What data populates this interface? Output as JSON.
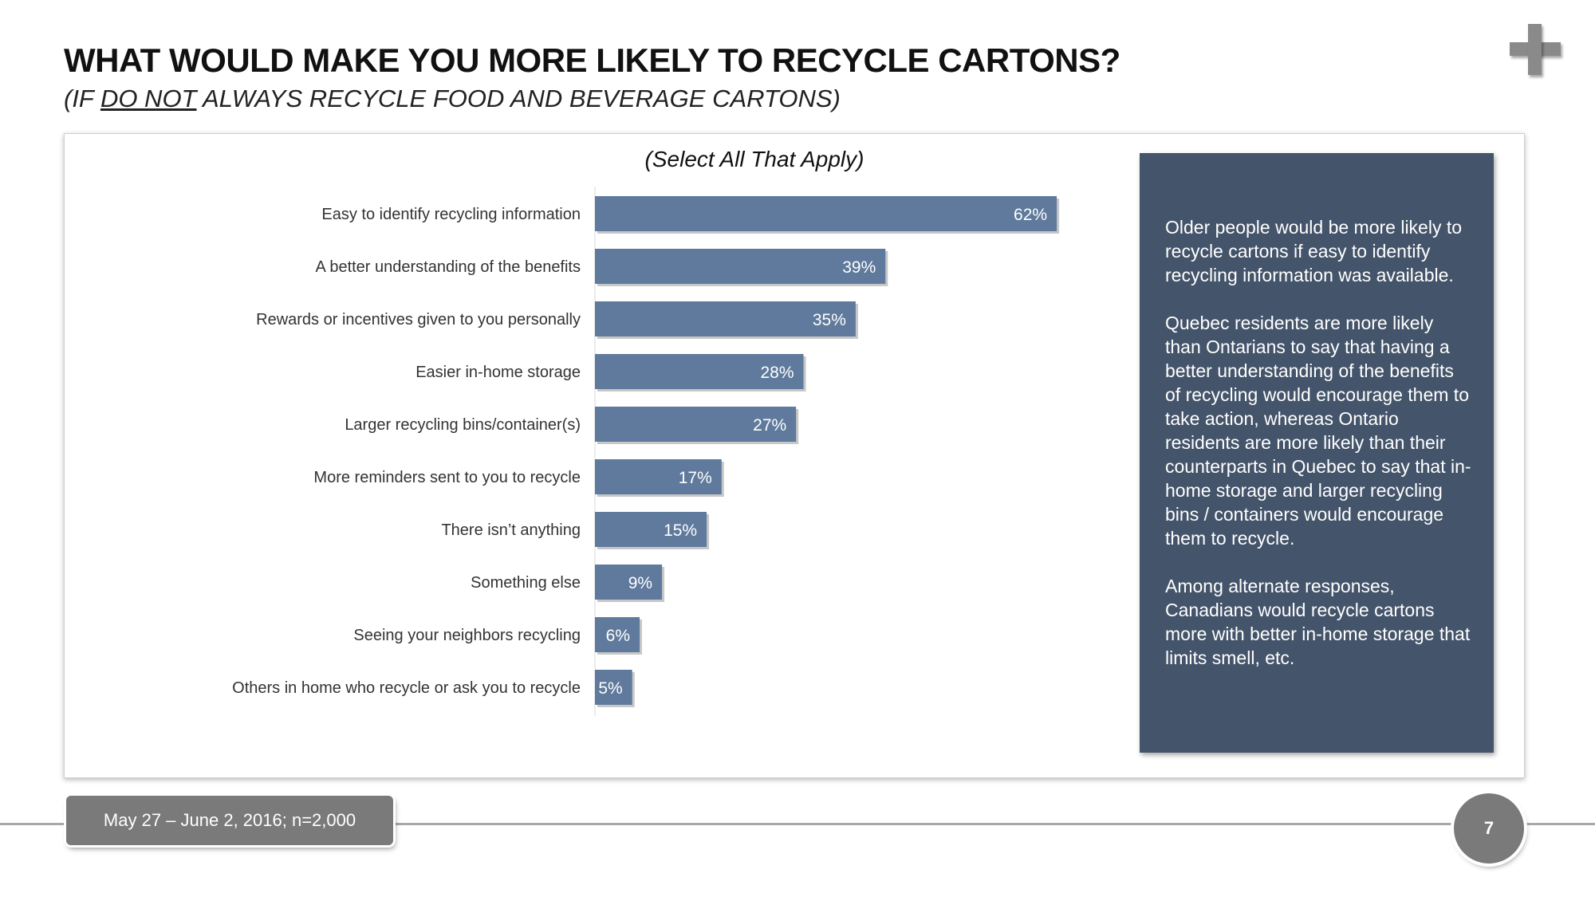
{
  "header": {
    "title": "WHAT WOULD MAKE YOU MORE LIKELY TO RECYCLE CARTONS?",
    "subtitle_prefix": "(IF ",
    "subtitle_emphasis": "DO NOT",
    "subtitle_suffix": " ALWAYS RECYCLE FOOD AND BEVERAGE CARTONS)"
  },
  "chart_note": "(Select All That Apply)",
  "chart_data": {
    "type": "bar",
    "orientation": "horizontal",
    "categories": [
      "Easy to identify recycling information",
      "A better understanding of the benefits",
      "Rewards or incentives given to you personally",
      "Easier in-home storage",
      "Larger recycling bins/container(s)",
      "More reminders sent to you to recycle",
      "There isn’t anything",
      "Something else",
      "Seeing your neighbors recycling",
      "Others in home who recycle or ask you to recycle"
    ],
    "values": [
      62,
      39,
      35,
      28,
      27,
      17,
      15,
      9,
      6,
      5
    ],
    "value_labels": [
      "62%",
      "39%",
      "35%",
      "28%",
      "27%",
      "17%",
      "15%",
      "9%",
      "6%",
      "5%"
    ],
    "xlim": [
      0,
      100
    ],
    "grid": false,
    "legend": "none",
    "bar_color": "#5f7a9c"
  },
  "insight": {
    "paragraphs": [
      "Older people would be more likely to recycle cartons if easy to identify recycling information was available.",
      "Quebec residents are more likely than Ontarians to say that having a better understanding of the benefits of recycling would encourage them to take action, whereas Ontario residents are more likely than their counterparts in Quebec to say that in-home storage and larger recycling bins / containers would encourage them to recycle.",
      "Among alternate responses, Canadians would recycle cartons more with better in-home storage that limits smell, etc."
    ]
  },
  "footer": {
    "survey_info": "May 27 – June 2, 2016; n=2,000",
    "page_number": "7"
  },
  "colors": {
    "bar": "#5f7a9c",
    "insight_box": "#44546a",
    "footer_gray": "#7a7a7a"
  },
  "icons": [
    "plus-icon"
  ]
}
